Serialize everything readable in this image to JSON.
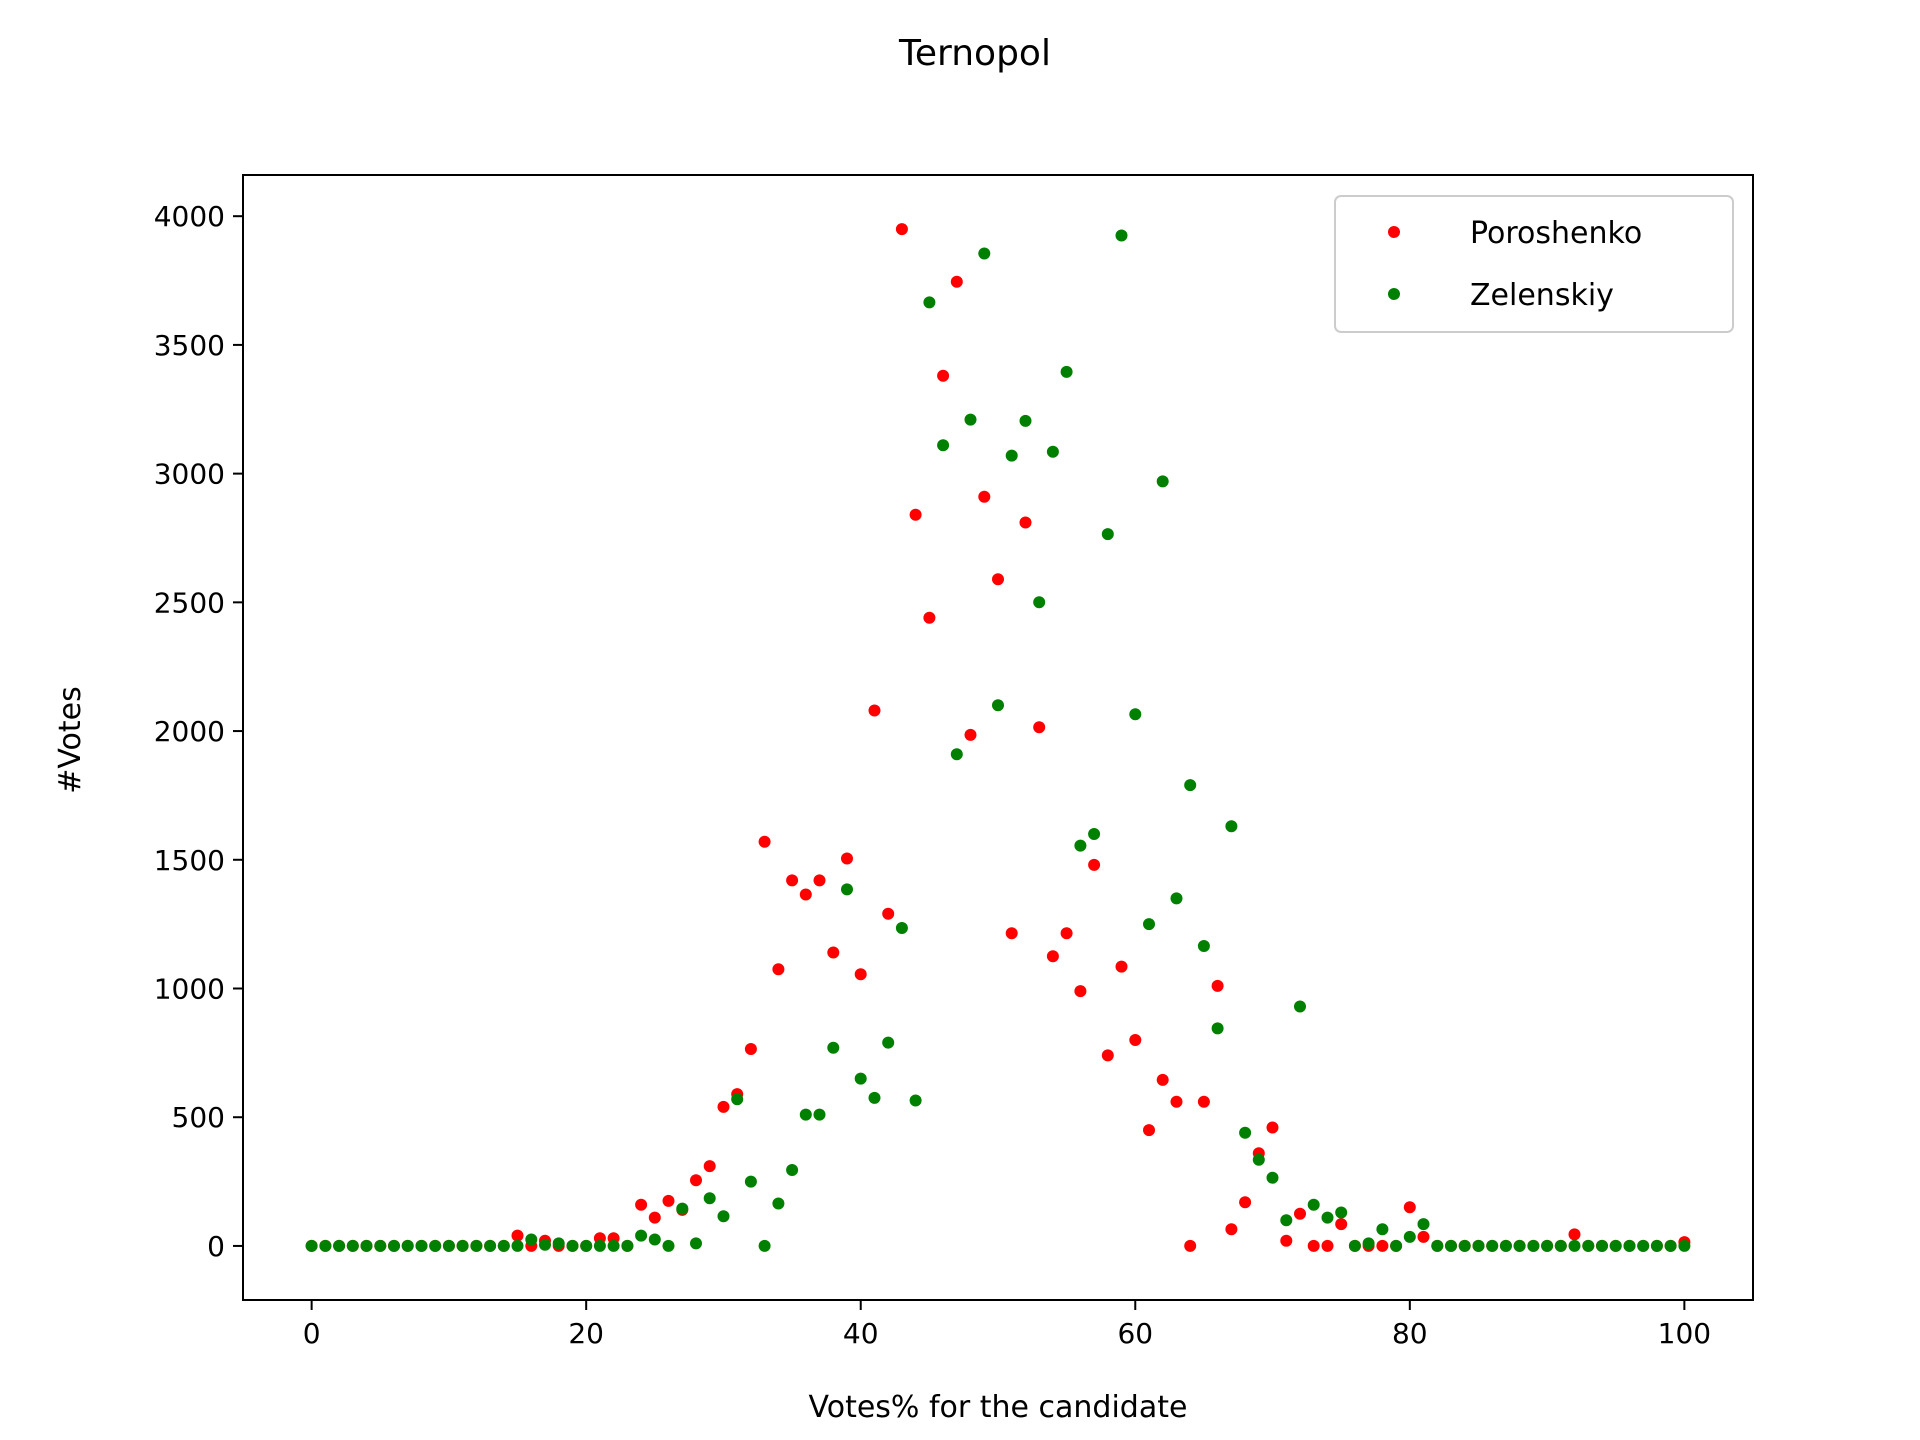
{
  "chart_data": {
    "type": "scatter",
    "title": "Ternopol",
    "xlabel": "Votes% for the candidate",
    "ylabel": "#Votes",
    "xlim": [
      -5,
      105
    ],
    "ylim": [
      -210,
      4160
    ],
    "xticks": [
      0,
      20,
      40,
      60,
      80,
      100
    ],
    "yticks": [
      0,
      500,
      1000,
      1500,
      2000,
      2500,
      3000,
      3500,
      4000
    ],
    "grid": false,
    "legend_position": "top-right",
    "series": [
      {
        "name": "Poroshenko",
        "color": "#ff0000",
        "points": [
          [
            0,
            0
          ],
          [
            1,
            0
          ],
          [
            2,
            0
          ],
          [
            3,
            0
          ],
          [
            4,
            0
          ],
          [
            5,
            0
          ],
          [
            6,
            0
          ],
          [
            7,
            0
          ],
          [
            8,
            0
          ],
          [
            9,
            0
          ],
          [
            10,
            0
          ],
          [
            11,
            0
          ],
          [
            12,
            0
          ],
          [
            13,
            0
          ],
          [
            14,
            0
          ],
          [
            15,
            40
          ],
          [
            16,
            0
          ],
          [
            17,
            20
          ],
          [
            18,
            0
          ],
          [
            19,
            0
          ],
          [
            20,
            0
          ],
          [
            21,
            30
          ],
          [
            22,
            30
          ],
          [
            23,
            0
          ],
          [
            24,
            160
          ],
          [
            25,
            110
          ],
          [
            26,
            175
          ],
          [
            27,
            140
          ],
          [
            28,
            255
          ],
          [
            29,
            310
          ],
          [
            30,
            540
          ],
          [
            31,
            590
          ],
          [
            32,
            765
          ],
          [
            33,
            1570
          ],
          [
            34,
            1075
          ],
          [
            35,
            1420
          ],
          [
            36,
            1365
          ],
          [
            37,
            1420
          ],
          [
            38,
            1140
          ],
          [
            39,
            1505
          ],
          [
            40,
            1055
          ],
          [
            41,
            2080
          ],
          [
            42,
            1290
          ],
          [
            43,
            3950
          ],
          [
            44,
            2840
          ],
          [
            45,
            2440
          ],
          [
            46,
            3380
          ],
          [
            47,
            3745
          ],
          [
            48,
            1985
          ],
          [
            49,
            2910
          ],
          [
            50,
            2590
          ],
          [
            51,
            1215
          ],
          [
            52,
            2810
          ],
          [
            53,
            2015
          ],
          [
            54,
            1125
          ],
          [
            55,
            1215
          ],
          [
            56,
            990
          ],
          [
            57,
            1480
          ],
          [
            58,
            740
          ],
          [
            59,
            1085
          ],
          [
            60,
            800
          ],
          [
            61,
            450
          ],
          [
            62,
            645
          ],
          [
            63,
            560
          ],
          [
            64,
            0
          ],
          [
            65,
            560
          ],
          [
            66,
            1010
          ],
          [
            67,
            65
          ],
          [
            68,
            170
          ],
          [
            69,
            360
          ],
          [
            70,
            460
          ],
          [
            71,
            20
          ],
          [
            72,
            125
          ],
          [
            73,
            0
          ],
          [
            74,
            0
          ],
          [
            75,
            85
          ],
          [
            76,
            0
          ],
          [
            77,
            0
          ],
          [
            78,
            0
          ],
          [
            79,
            0
          ],
          [
            80,
            150
          ],
          [
            81,
            35
          ],
          [
            82,
            0
          ],
          [
            83,
            0
          ],
          [
            84,
            0
          ],
          [
            85,
            0
          ],
          [
            86,
            0
          ],
          [
            87,
            0
          ],
          [
            88,
            0
          ],
          [
            89,
            0
          ],
          [
            90,
            0
          ],
          [
            91,
            0
          ],
          [
            92,
            45
          ],
          [
            93,
            0
          ],
          [
            94,
            0
          ],
          [
            95,
            0
          ],
          [
            96,
            0
          ],
          [
            97,
            0
          ],
          [
            98,
            0
          ],
          [
            99,
            0
          ],
          [
            100,
            15
          ]
        ]
      },
      {
        "name": "Zelenskiy",
        "color": "#008000",
        "points": [
          [
            0,
            0
          ],
          [
            1,
            0
          ],
          [
            2,
            0
          ],
          [
            3,
            0
          ],
          [
            4,
            0
          ],
          [
            5,
            0
          ],
          [
            6,
            0
          ],
          [
            7,
            0
          ],
          [
            8,
            0
          ],
          [
            9,
            0
          ],
          [
            10,
            0
          ],
          [
            11,
            0
          ],
          [
            12,
            0
          ],
          [
            13,
            0
          ],
          [
            14,
            0
          ],
          [
            15,
            0
          ],
          [
            16,
            25
          ],
          [
            17,
            5
          ],
          [
            18,
            10
          ],
          [
            19,
            0
          ],
          [
            20,
            0
          ],
          [
            21,
            0
          ],
          [
            22,
            0
          ],
          [
            23,
            0
          ],
          [
            24,
            40
          ],
          [
            25,
            25
          ],
          [
            26,
            0
          ],
          [
            27,
            145
          ],
          [
            28,
            10
          ],
          [
            29,
            185
          ],
          [
            30,
            115
          ],
          [
            31,
            570
          ],
          [
            32,
            250
          ],
          [
            33,
            0
          ],
          [
            34,
            165
          ],
          [
            35,
            295
          ],
          [
            36,
            510
          ],
          [
            37,
            510
          ],
          [
            38,
            770
          ],
          [
            39,
            1385
          ],
          [
            40,
            650
          ],
          [
            41,
            575
          ],
          [
            42,
            790
          ],
          [
            43,
            1235
          ],
          [
            44,
            565
          ],
          [
            45,
            3665
          ],
          [
            46,
            3110
          ],
          [
            47,
            1910
          ],
          [
            48,
            3210
          ],
          [
            49,
            3855
          ],
          [
            50,
            2100
          ],
          [
            51,
            3070
          ],
          [
            52,
            3205
          ],
          [
            53,
            2500
          ],
          [
            54,
            3085
          ],
          [
            55,
            3395
          ],
          [
            56,
            1555
          ],
          [
            57,
            1600
          ],
          [
            58,
            2765
          ],
          [
            59,
            3925
          ],
          [
            60,
            2065
          ],
          [
            61,
            1250
          ],
          [
            62,
            2970
          ],
          [
            63,
            1350
          ],
          [
            64,
            1790
          ],
          [
            65,
            1165
          ],
          [
            66,
            845
          ],
          [
            67,
            1630
          ],
          [
            68,
            440
          ],
          [
            69,
            335
          ],
          [
            70,
            265
          ],
          [
            71,
            100
          ],
          [
            72,
            930
          ],
          [
            73,
            160
          ],
          [
            74,
            110
          ],
          [
            75,
            130
          ],
          [
            76,
            0
          ],
          [
            77,
            10
          ],
          [
            78,
            65
          ],
          [
            79,
            0
          ],
          [
            80,
            35
          ],
          [
            81,
            85
          ],
          [
            82,
            0
          ],
          [
            83,
            0
          ],
          [
            84,
            0
          ],
          [
            85,
            0
          ],
          [
            86,
            0
          ],
          [
            87,
            0
          ],
          [
            88,
            0
          ],
          [
            89,
            0
          ],
          [
            90,
            0
          ],
          [
            91,
            0
          ],
          [
            92,
            0
          ],
          [
            93,
            0
          ],
          [
            94,
            0
          ],
          [
            95,
            0
          ],
          [
            96,
            0
          ],
          [
            97,
            0
          ],
          [
            98,
            0
          ],
          [
            99,
            0
          ],
          [
            100,
            0
          ]
        ]
      }
    ]
  }
}
